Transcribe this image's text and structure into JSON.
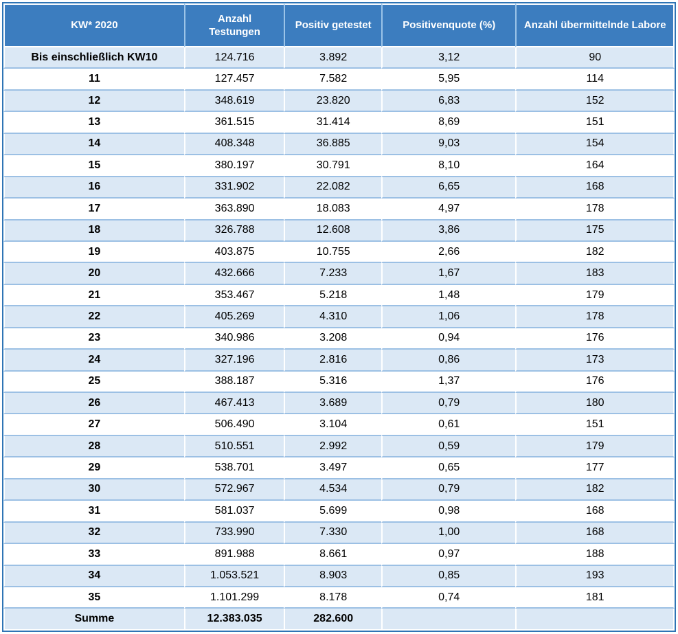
{
  "table": {
    "columns": [
      "KW* 2020",
      "Anzahl Testungen",
      "Positiv getestet",
      "Positivenquote (%)",
      "Anzahl übermittelnde Labore"
    ],
    "rows": [
      [
        "Bis einschließlich KW10",
        "124.716",
        "3.892",
        "3,12",
        "90"
      ],
      [
        "11",
        "127.457",
        "7.582",
        "5,95",
        "114"
      ],
      [
        "12",
        "348.619",
        "23.820",
        "6,83",
        "152"
      ],
      [
        "13",
        "361.515",
        "31.414",
        "8,69",
        "151"
      ],
      [
        "14",
        "408.348",
        "36.885",
        "9,03",
        "154"
      ],
      [
        "15",
        "380.197",
        "30.791",
        "8,10",
        "164"
      ],
      [
        "16",
        "331.902",
        "22.082",
        "6,65",
        "168"
      ],
      [
        "17",
        "363.890",
        "18.083",
        "4,97",
        "178"
      ],
      [
        "18",
        "326.788",
        "12.608",
        "3,86",
        "175"
      ],
      [
        "19",
        "403.875",
        "10.755",
        "2,66",
        "182"
      ],
      [
        "20",
        "432.666",
        "7.233",
        "1,67",
        "183"
      ],
      [
        "21",
        "353.467",
        "5.218",
        "1,48",
        "179"
      ],
      [
        "22",
        "405.269",
        "4.310",
        "1,06",
        "178"
      ],
      [
        "23",
        "340.986",
        "3.208",
        "0,94",
        "176"
      ],
      [
        "24",
        "327.196",
        "2.816",
        "0,86",
        "173"
      ],
      [
        "25",
        "388.187",
        "5.316",
        "1,37",
        "176"
      ],
      [
        "26",
        "467.413",
        "3.689",
        "0,79",
        "180"
      ],
      [
        "27",
        "506.490",
        "3.104",
        "0,61",
        "151"
      ],
      [
        "28",
        "510.551",
        "2.992",
        "0,59",
        "179"
      ],
      [
        "29",
        "538.701",
        "3.497",
        "0,65",
        "177"
      ],
      [
        "30",
        "572.967",
        "4.534",
        "0,79",
        "182"
      ],
      [
        "31",
        "581.037",
        "5.699",
        "0,98",
        "168"
      ],
      [
        "32",
        "733.990",
        "7.330",
        "1,00",
        "168"
      ],
      [
        "33",
        "891.988",
        "8.661",
        "0,97",
        "188"
      ],
      [
        "34",
        "1.053.521",
        "8.903",
        "0,85",
        "193"
      ],
      [
        "35",
        "1.101.299",
        "8.178",
        "0,74",
        "181"
      ]
    ],
    "summary_row": [
      "Summe",
      "12.383.035",
      "282.600",
      "",
      ""
    ]
  },
  "colors": {
    "header_bg": "#3C7DBF",
    "header_text": "#FFFFFF",
    "header_separator": "#9CC4E8",
    "outer_border": "#2E74B5",
    "row_border": "#9CC0E4",
    "band_bg": "#DBE8F5",
    "white_row_bg": "#FFFFFF",
    "text": "#000000"
  }
}
